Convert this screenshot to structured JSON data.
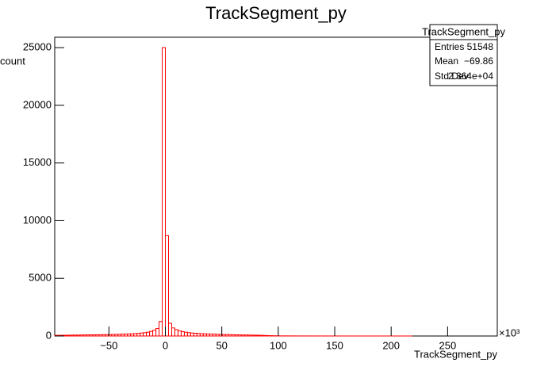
{
  "chart_data": {
    "type": "histogram",
    "title": "TrackSegment_py",
    "x_label": "TrackSegment_py",
    "y_label": "count",
    "x_exponent": "×10³",
    "bins": [
      -98,
      -95.2,
      -92.4,
      -89.6,
      -86.8,
      -84,
      -81.2,
      -78.4,
      -75.6,
      -72.8,
      -70,
      -67.2,
      -64.4,
      -61.6,
      -58.8,
      -56,
      -53.2,
      -50.4,
      -47.6,
      -44.8,
      -42,
      -39.2,
      -36.4,
      -33.6,
      -30.8,
      -28,
      -25.2,
      -22.4,
      -19.6,
      -16.8,
      -14,
      -11.2,
      -8.4,
      -5.6,
      -2.8,
      0,
      2.8,
      5.6,
      8.4,
      11.2,
      14,
      16.8,
      19.6,
      22.4,
      25.2,
      28,
      30.8,
      33.6,
      36.4,
      39.2,
      42,
      44.8,
      47.6,
      50.4,
      53.2,
      56,
      58.8,
      61.6,
      64.4,
      67.2,
      70,
      72.8,
      75.6,
      78.4,
      81.2,
      84,
      86.8,
      89.6,
      92.4,
      95.2,
      98,
      100.8,
      103.6,
      106.4,
      109.2,
      112,
      114.8,
      117.6,
      120.4,
      123.2,
      126,
      128.8,
      131.6,
      134.4,
      137.2,
      140,
      142.8,
      145.6,
      148.4,
      151.2,
      154,
      156.8,
      159.6,
      162.4,
      165.2,
      168,
      170.8,
      173.6,
      176.4,
      179.2,
      182,
      184.8,
      187.6,
      190.4,
      193.2,
      196,
      198.8,
      201.6,
      204.4,
      207.2,
      210,
      212.8,
      215.6,
      218.4,
      221.2,
      224,
      226.8,
      229.6,
      232.4,
      235.2,
      238,
      240.8,
      243.6,
      246.4,
      249.2,
      252,
      254.8,
      257.6,
      260.4,
      263.2,
      266,
      268.8,
      271.6,
      274.4,
      277.2,
      280,
      282.8,
      285.6,
      288.4,
      291.2,
      294
    ],
    "values": [
      60,
      60,
      70,
      70,
      70,
      80,
      80,
      80,
      90,
      90,
      100,
      100,
      100,
      110,
      110,
      120,
      120,
      130,
      130,
      140,
      150,
      160,
      170,
      180,
      190,
      210,
      230,
      260,
      290,
      330,
      400,
      500,
      650,
      1250,
      25000,
      8700,
      1100,
      700,
      550,
      450,
      380,
      330,
      290,
      260,
      240,
      220,
      200,
      190,
      180,
      170,
      160,
      150,
      140,
      130,
      130,
      120,
      110,
      100,
      100,
      90,
      90,
      80,
      80,
      70,
      70,
      60,
      50,
      40,
      30,
      20,
      15,
      12,
      10,
      10,
      8,
      8,
      7,
      6,
      6,
      5,
      5,
      5,
      4,
      4,
      4,
      3,
      3,
      3,
      3,
      3,
      2,
      2,
      2,
      2,
      2,
      2,
      2,
      1,
      1,
      1,
      1,
      1,
      1,
      1,
      1,
      1,
      1,
      1,
      1,
      1,
      1,
      1,
      1,
      0,
      0,
      0,
      0,
      0,
      0,
      0,
      0,
      0,
      0,
      0,
      0,
      0,
      0,
      0,
      0,
      0,
      0,
      0,
      0,
      0,
      0,
      0,
      0,
      0,
      0,
      0
    ],
    "color": "#ff0000",
    "xlim": [
      -98,
      294
    ],
    "ylim": [
      0,
      25900
    ],
    "xticks": [
      {
        "value": -50,
        "label": "−50"
      },
      0,
      50,
      100,
      150,
      200,
      250
    ],
    "yticks": [
      0,
      5000,
      10000,
      15000,
      20000,
      25000
    ],
    "stats": {
      "title": "TrackSegment_py",
      "rows": [
        [
          "Entries",
          "51548"
        ],
        [
          "Mean",
          "−69.86"
        ],
        [
          "Std Dev",
          "2.364e+04"
        ]
      ]
    }
  }
}
